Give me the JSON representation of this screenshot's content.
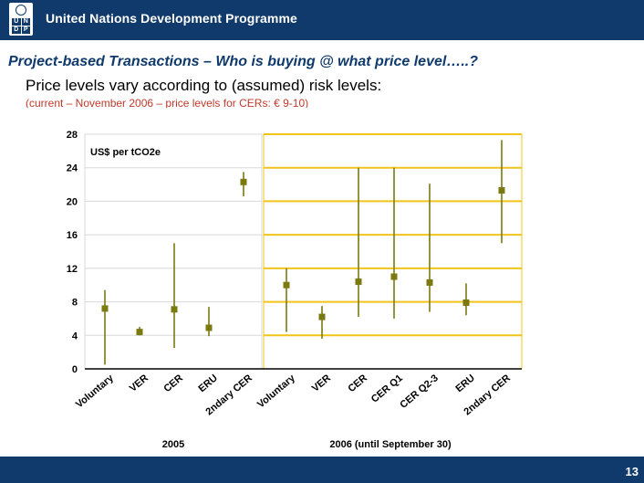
{
  "header": {
    "org_name": "United Nations Development Programme",
    "logo_letters": [
      "U",
      "N",
      "D",
      "P"
    ]
  },
  "slide": {
    "title": "Project-based Transactions – Who is buying @ what price level…..?",
    "subtitle": "Price levels vary according to (assumed) risk levels:",
    "note": "(current – November 2006 – price levels for CERs: € 9-10)",
    "page_number": "13"
  },
  "colors": {
    "header_bg": "#0f3a6b",
    "series": "#7a7a10",
    "gridline_2005": "#d8d8d8",
    "gridline_2006": "#f0c419"
  },
  "chart_data": {
    "type": "scatter",
    "unit_label": "US$ per tCO2e",
    "ylim": [
      0,
      28
    ],
    "yticks": [
      0,
      4,
      8,
      12,
      16,
      20,
      24,
      28
    ],
    "grid": true,
    "groups": [
      {
        "name": "2005",
        "categories": [
          "Voluntary",
          "VER",
          "CER",
          "ERU",
          "2ndary CER"
        ],
        "points": [
          {
            "category": "Voluntary",
            "value": 7.2,
            "low": 0.5,
            "high": 9.4
          },
          {
            "category": "VER",
            "value": 4.4,
            "low": 4.0,
            "high": 5.0
          },
          {
            "category": "CER",
            "value": 7.1,
            "low": 2.5,
            "high": 15.0
          },
          {
            "category": "ERU",
            "value": 4.9,
            "low": 3.9,
            "high": 7.4
          },
          {
            "category": "2ndary CER",
            "value": 22.3,
            "low": 20.6,
            "high": 23.5
          }
        ]
      },
      {
        "name": "2006 (until September 30)",
        "categories": [
          "Voluntary",
          "VER",
          "CER",
          "CER Q1",
          "CER Q2-3",
          "ERU",
          "2ndary CER"
        ],
        "points": [
          {
            "category": "Voluntary",
            "value": 10.0,
            "low": 4.4,
            "high": 12.0
          },
          {
            "category": "VER",
            "value": 6.2,
            "low": 3.6,
            "high": 7.5
          },
          {
            "category": "CER",
            "value": 10.4,
            "low": 6.2,
            "high": 24.0
          },
          {
            "category": "CER Q1",
            "value": 11.0,
            "low": 6.0,
            "high": 24.0
          },
          {
            "category": "CER Q2-3",
            "value": 10.3,
            "low": 6.8,
            "high": 22.1
          },
          {
            "category": "ERU",
            "value": 7.9,
            "low": 6.4,
            "high": 10.2
          },
          {
            "category": "2ndary CER",
            "value": 21.3,
            "low": 15.0,
            "high": 27.3
          }
        ]
      }
    ]
  }
}
